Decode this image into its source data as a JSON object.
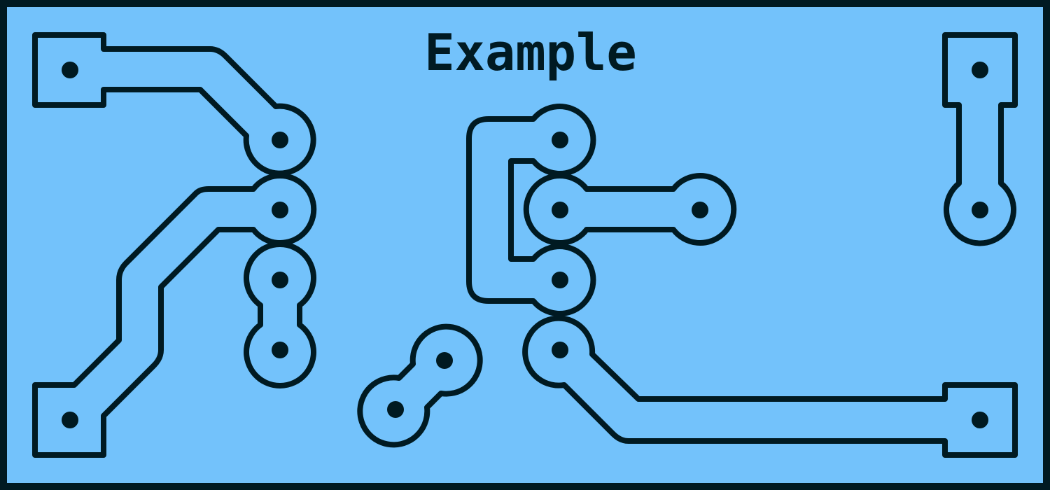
{
  "title": "Example",
  "colors": {
    "board": "#73c2fb",
    "outline": "#001a22",
    "hole": "#001a22"
  }
}
